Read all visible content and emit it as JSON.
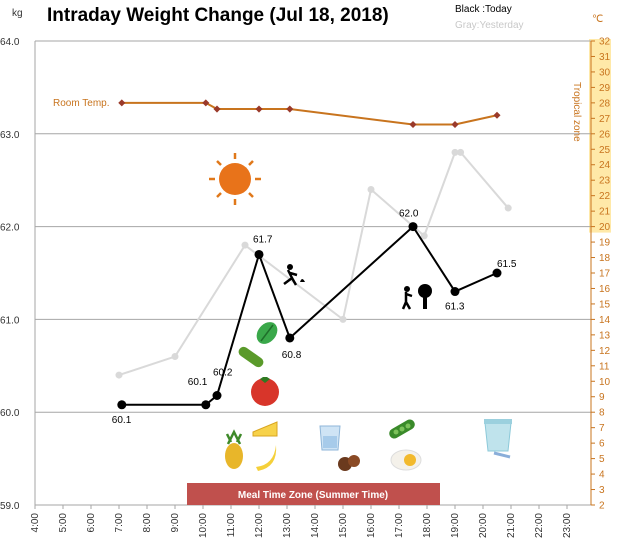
{
  "chart_data": {
    "type": "line",
    "title": "Intraday Weight Change (Jul 18, 2018)",
    "legend": {
      "today": "Black :Today",
      "yesterday": "Gray:Yesterday"
    },
    "y_unit": "kg",
    "y2_unit": "℃",
    "ylim": [
      59.0,
      64.0
    ],
    "y_ticks": [
      "64.0",
      "63.0",
      "62.0",
      "61.0",
      "60.0",
      "59.0"
    ],
    "y2lim": [
      2,
      32
    ],
    "y2_ticks": [
      "32",
      "31",
      "30",
      "29",
      "28",
      "27",
      "26",
      "25",
      "24",
      "23",
      "22",
      "21",
      "20",
      "19",
      "18",
      "17",
      "16",
      "15",
      "14",
      "13",
      "12",
      "11",
      "10",
      "9",
      "8",
      "7",
      "6",
      "5",
      "4",
      "3",
      "2"
    ],
    "xlim": [
      4,
      24
    ],
    "x_ticks": [
      "4:00",
      "5:00",
      "6:00",
      "7:00",
      "8:00",
      "9:00",
      "10:00",
      "11:00",
      "12:00",
      "13:00",
      "14:00",
      "15:00",
      "16:00",
      "17:00",
      "18:00",
      "19:00",
      "20:00",
      "21:00",
      "22:00",
      "23:00"
    ],
    "series": [
      {
        "name": "Black :Today",
        "color": "#000000",
        "x": [
          7.1,
          10.1,
          10.5,
          12.0,
          13.1,
          17.5,
          19.0,
          20.5
        ],
        "y": [
          60.08,
          60.08,
          60.18,
          61.7,
          60.8,
          62.0,
          61.3,
          61.5
        ],
        "labels": [
          "60.1",
          "60.1",
          "60.2",
          "61.7",
          "60.8",
          "62.0",
          "61.3",
          "61.5"
        ]
      },
      {
        "name": "Gray:Yesterday",
        "color": "#d9d9d9",
        "x": [
          7.0,
          9.0,
          11.5,
          15.0,
          16.0,
          17.9,
          19.0,
          19.2,
          20.9
        ],
        "y": [
          60.4,
          60.6,
          61.8,
          61.0,
          62.4,
          61.9,
          62.8,
          62.8,
          62.2
        ]
      },
      {
        "name": "Room Temp.",
        "color": "#c8741e",
        "axis": "right",
        "x": [
          7.1,
          10.1,
          10.5,
          12.0,
          13.1,
          17.5,
          19.0,
          20.5
        ],
        "y": [
          28,
          28,
          27.6,
          27.6,
          27.6,
          26.6,
          26.6,
          27.2
        ]
      }
    ],
    "annotations": {
      "room_temp": "Room Temp.",
      "tropical_zone": "Tropical zone",
      "meal_zone": "Meal Time Zone  (Summer Time)"
    },
    "tropical_range": [
      20,
      32
    ],
    "meal_range": [
      9.5,
      18.5
    ],
    "grid": "horizontal"
  },
  "colors": {
    "temperature": "#c8741e",
    "tropical_band": "#ffe9a8",
    "meal_band": "#c0504d",
    "yesterday": "#d9d9d9",
    "today": "#000000"
  },
  "icons": [
    "sun-icon",
    "gardening-icon",
    "watering-tree-icon",
    "lettuce-icon",
    "cucumber-icon",
    "tomato-icon",
    "cheese-icon",
    "pineapple-icon",
    "banana-icon",
    "water-glass-icon",
    "edamame-icon",
    "chocolate-icon",
    "fried-egg-icon",
    "yogurt-cup-icon"
  ]
}
